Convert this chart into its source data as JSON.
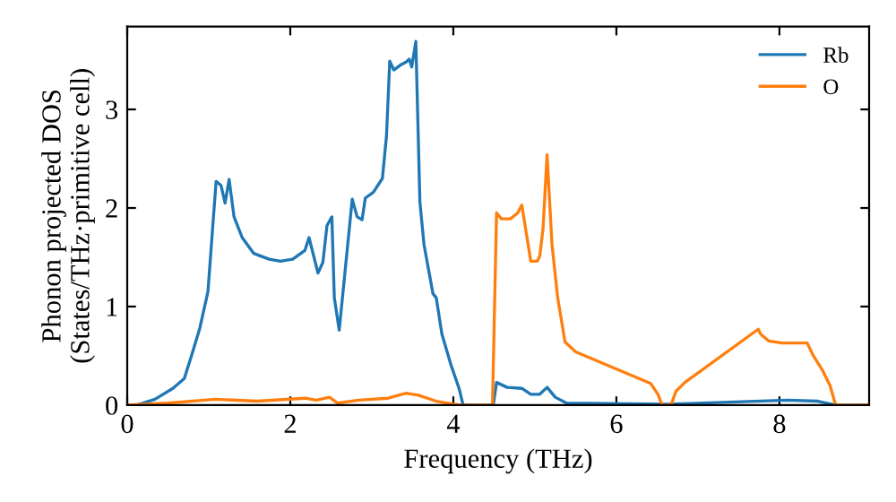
{
  "chart_data": {
    "type": "line",
    "xlabel": "Frequency (THz)",
    "ylabel": "Phonon projected DOS\n(States/THz·primitive cell)",
    "xlim": [
      0,
      9.1
    ],
    "ylim": [
      0,
      3.84
    ],
    "xticks": [
      0,
      2,
      4,
      6,
      8
    ],
    "yticks": [
      0,
      1,
      2,
      3
    ],
    "grid": false,
    "legend": "top right",
    "series": [
      {
        "name": "Rb",
        "color": "#1f77b4",
        "x": [
          0,
          0.12,
          0.34,
          0.56,
          0.7,
          0.78,
          0.89,
          0.99,
          1.09,
          1.15,
          1.2,
          1.25,
          1.31,
          1.41,
          1.55,
          1.74,
          1.88,
          2.03,
          2.18,
          2.23,
          2.34,
          2.4,
          2.45,
          2.51,
          2.54,
          2.6,
          2.76,
          2.82,
          2.88,
          2.92,
          3.02,
          3.13,
          3.18,
          3.22,
          3.27,
          3.35,
          3.42,
          3.46,
          3.49,
          3.54,
          3.59,
          3.64,
          3.75,
          3.79,
          3.86,
          3.97,
          4.07,
          4.12,
          4.49,
          4.53,
          4.66,
          4.84,
          4.95,
          5.06,
          5.15,
          5.25,
          5.39,
          6.64,
          8.1,
          8.47,
          8.69,
          9.1
        ],
        "values": [
          0,
          0,
          0.06,
          0.17,
          0.27,
          0.48,
          0.78,
          1.15,
          2.27,
          2.23,
          2.05,
          2.29,
          1.91,
          1.7,
          1.54,
          1.48,
          1.46,
          1.48,
          1.57,
          1.7,
          1.34,
          1.45,
          1.82,
          1.91,
          1.09,
          0.76,
          2.09,
          1.91,
          1.88,
          2.1,
          2.16,
          2.3,
          2.73,
          3.49,
          3.4,
          3.45,
          3.48,
          3.51,
          3.43,
          3.69,
          2.06,
          1.63,
          1.13,
          1.09,
          0.72,
          0.41,
          0.17,
          0,
          0,
          0.23,
          0.18,
          0.17,
          0.11,
          0.11,
          0.18,
          0.08,
          0.02,
          0.01,
          0.05,
          0.04,
          0,
          0
        ]
      },
      {
        "name": "O",
        "color": "#ff7f0e",
        "x": [
          0,
          0.49,
          1.08,
          1.59,
          2.18,
          2.32,
          2.48,
          2.58,
          2.84,
          3.2,
          3.42,
          3.57,
          3.79,
          4.08,
          4.48,
          4.53,
          4.59,
          4.7,
          4.79,
          4.84,
          4.95,
          5.03,
          5.06,
          5.1,
          5.15,
          5.21,
          5.28,
          5.37,
          5.5,
          6.42,
          6.51,
          6.56,
          6.67,
          6.73,
          6.84,
          7.74,
          7.77,
          7.87,
          8.03,
          8.34,
          8.41,
          8.53,
          8.62,
          8.69,
          9.1
        ],
        "values": [
          0,
          0.02,
          0.06,
          0.04,
          0.07,
          0.05,
          0.08,
          0.02,
          0.05,
          0.07,
          0.12,
          0.1,
          0.04,
          0,
          0,
          1.95,
          1.89,
          1.89,
          1.95,
          2.03,
          1.46,
          1.46,
          1.51,
          1.79,
          2.54,
          1.63,
          1.09,
          0.64,
          0.54,
          0.22,
          0.11,
          0,
          0,
          0.14,
          0.23,
          0.77,
          0.72,
          0.65,
          0.63,
          0.63,
          0.51,
          0.35,
          0.2,
          0,
          0
        ]
      }
    ]
  }
}
